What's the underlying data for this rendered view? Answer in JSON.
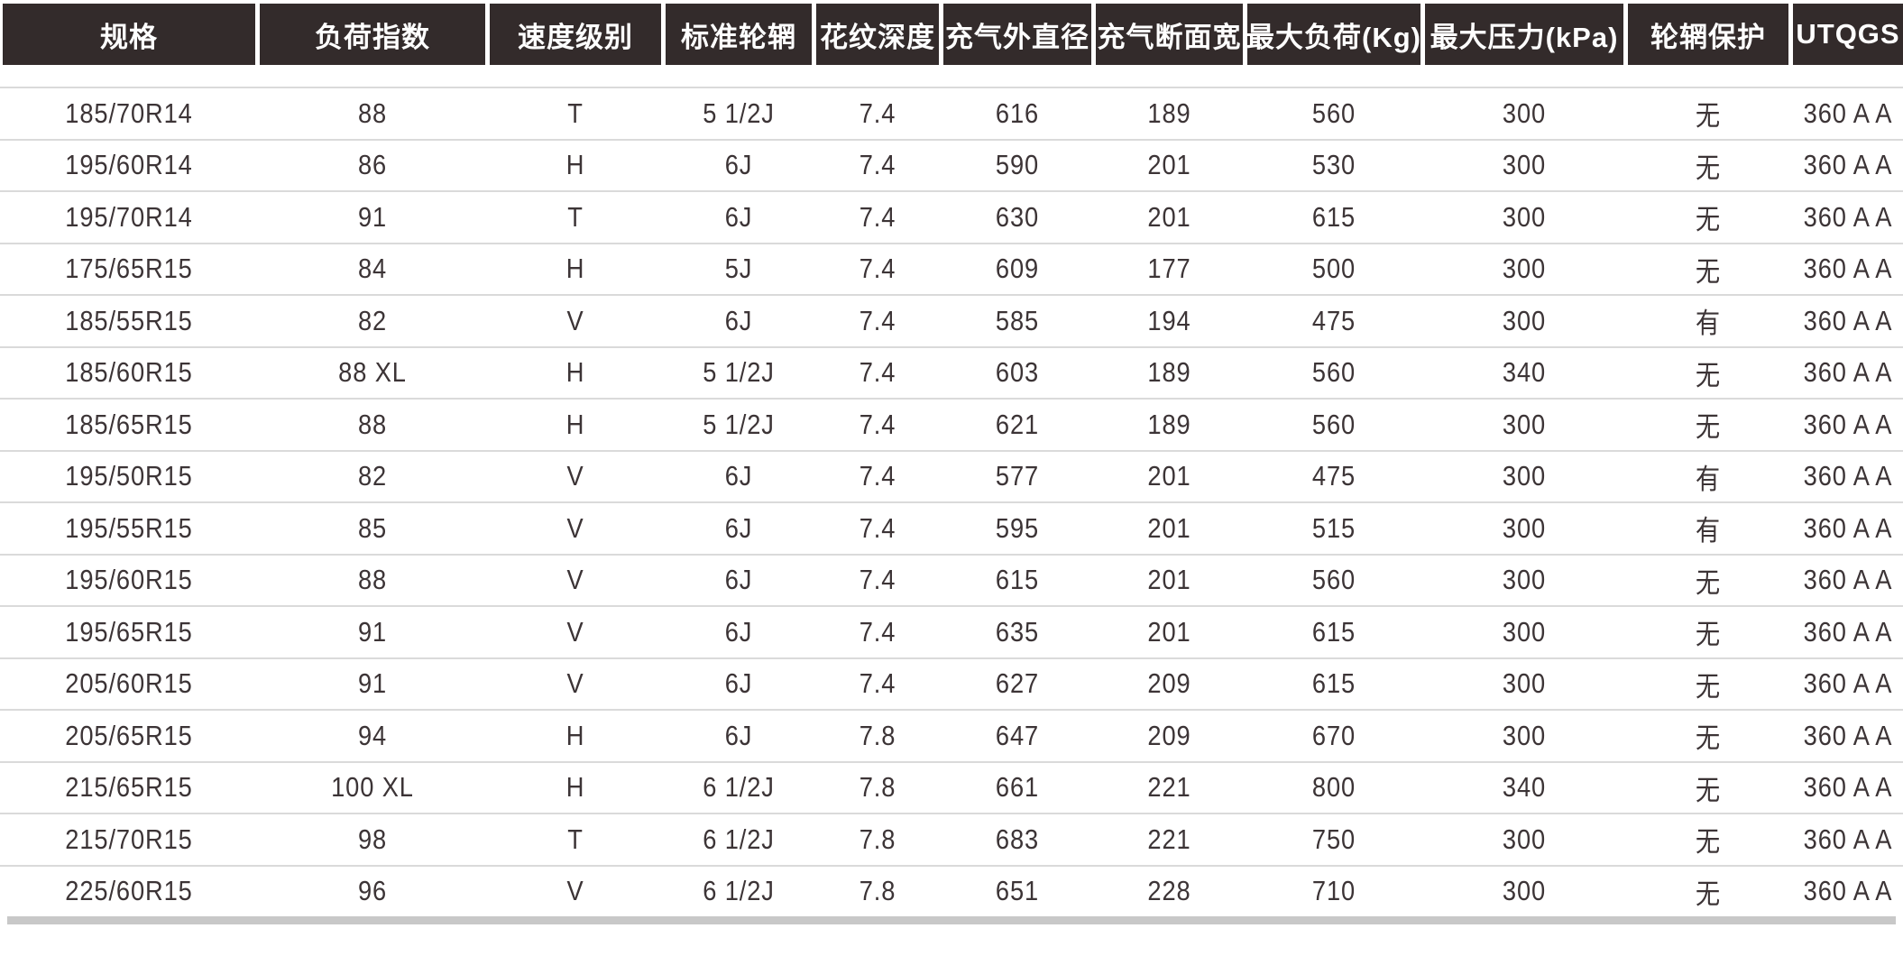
{
  "colors": {
    "header_background": "#332b2b",
    "header_text": "#ffffff",
    "cell_text": "#3c3436",
    "row_separator": "#dadada",
    "bottom_bar": "#c8c8c8"
  },
  "table": {
    "columns": [
      "规格",
      "负荷指数",
      "速度级别",
      "标准轮辋",
      "花纹深度",
      "充气外直径",
      "充气断面宽",
      "最大负荷(Kg)",
      "最大压力(kPa)",
      "轮辋保护",
      "UTQGS"
    ],
    "rows": [
      [
        "185/70R14",
        "88",
        "T",
        "5 1/2J",
        "7.4",
        "616",
        "189",
        "560",
        "300",
        "无",
        "360 A A"
      ],
      [
        "195/60R14",
        "86",
        "H",
        "6J",
        "7.4",
        "590",
        "201",
        "530",
        "300",
        "无",
        "360 A A"
      ],
      [
        "195/70R14",
        "91",
        "T",
        "6J",
        "7.4",
        "630",
        "201",
        "615",
        "300",
        "无",
        "360 A A"
      ],
      [
        "175/65R15",
        "84",
        "H",
        "5J",
        "7.4",
        "609",
        "177",
        "500",
        "300",
        "无",
        "360 A A"
      ],
      [
        "185/55R15",
        "82",
        "V",
        "6J",
        "7.4",
        "585",
        "194",
        "475",
        "300",
        "有",
        "360 A A"
      ],
      [
        "185/60R15",
        "88 XL",
        "H",
        "5 1/2J",
        "7.4",
        "603",
        "189",
        "560",
        "340",
        "无",
        "360 A A"
      ],
      [
        "185/65R15",
        "88",
        "H",
        "5 1/2J",
        "7.4",
        "621",
        "189",
        "560",
        "300",
        "无",
        "360 A A"
      ],
      [
        "195/50R15",
        "82",
        "V",
        "6J",
        "7.4",
        "577",
        "201",
        "475",
        "300",
        "有",
        "360 A A"
      ],
      [
        "195/55R15",
        "85",
        "V",
        "6J",
        "7.4",
        "595",
        "201",
        "515",
        "300",
        "有",
        "360 A A"
      ],
      [
        "195/60R15",
        "88",
        "V",
        "6J",
        "7.4",
        "615",
        "201",
        "560",
        "300",
        "无",
        "360 A A"
      ],
      [
        "195/65R15",
        "91",
        "V",
        "6J",
        "7.4",
        "635",
        "201",
        "615",
        "300",
        "无",
        "360 A A"
      ],
      [
        "205/60R15",
        "91",
        "V",
        "6J",
        "7.4",
        "627",
        "209",
        "615",
        "300",
        "无",
        "360 A A"
      ],
      [
        "205/65R15",
        "94",
        "H",
        "6J",
        "7.8",
        "647",
        "209",
        "670",
        "300",
        "无",
        "360 A A"
      ],
      [
        "215/65R15",
        "100 XL",
        "H",
        "6 1/2J",
        "7.8",
        "661",
        "221",
        "800",
        "340",
        "无",
        "360 A A"
      ],
      [
        "215/70R15",
        "98",
        "T",
        "6 1/2J",
        "7.8",
        "683",
        "221",
        "750",
        "300",
        "无",
        "360 A A"
      ],
      [
        "225/60R15",
        "96",
        "V",
        "6 1/2J",
        "7.8",
        "651",
        "228",
        "710",
        "300",
        "无",
        "360 A A"
      ]
    ]
  }
}
